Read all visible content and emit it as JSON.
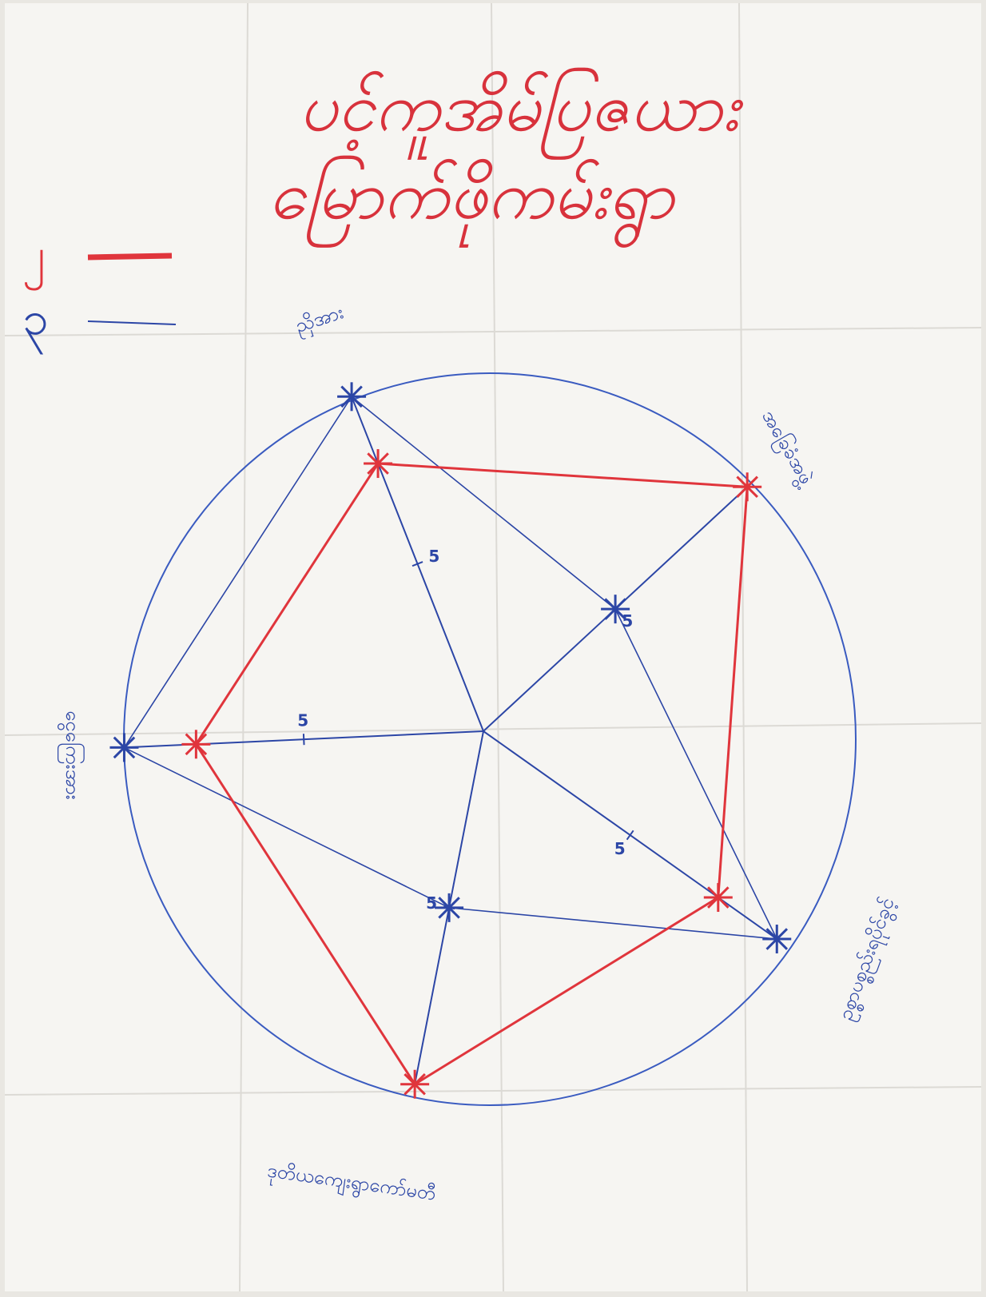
{
  "chart_data": {
    "type": "radar",
    "title": [
      "ပင့်ကူအိမ်ပြဇယား",
      "မြောက်ဖိုကမ်းရွာ"
    ],
    "title_color": "#d8323c",
    "categories": [
      "ညှိအား",
      "အခြေခံအဖွဲ့",
      "ဥစ္စာပစ္စည်းရပိုင်ခွင့်",
      "ဒုတိယကျေးရွာကော်မတီ",
      "ငွေကြေးအား"
    ],
    "rlim": [
      0,
      10
    ],
    "rticks": [
      5
    ],
    "series": [
      {
        "name": "၂",
        "color": "#e0353c",
        "values": [
          8,
          10,
          8,
          10,
          8
        ]
      },
      {
        "name": "၃",
        "color": "#2c46a6",
        "values": [
          10,
          5,
          10,
          5,
          10
        ]
      }
    ]
  }
}
